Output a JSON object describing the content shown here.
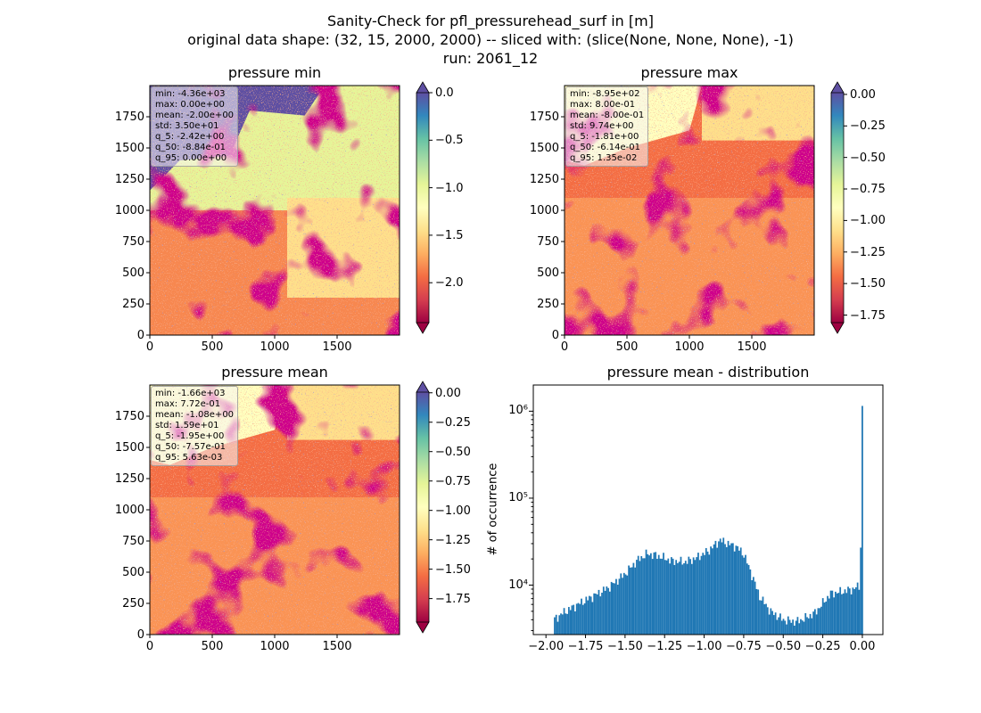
{
  "figure": {
    "title_lines": [
      "Sanity-Check for pfl_pressurehead_surf in [m]",
      "original data shape: (32, 15, 2000, 2000) -- sliced with: (slice(None, None, None), -1)",
      "run: 2061_12"
    ]
  },
  "chart_data": [
    {
      "type": "heatmap",
      "title": "pressure min",
      "xticks": [
        "0",
        "500",
        "1000",
        "1500"
      ],
      "yticks": [
        "0",
        "250",
        "500",
        "750",
        "1000",
        "1250",
        "1500",
        "1750"
      ],
      "xlim": [
        0,
        2000
      ],
      "ylim": [
        0,
        2000
      ],
      "colorbar": {
        "cmap": "Spectral",
        "ticks": [
          "0.0",
          "−0.5",
          "−1.0",
          "−1.5",
          "−2.0"
        ],
        "tick_values": [
          0.0,
          -0.5,
          -1.0,
          -1.5,
          -2.0
        ],
        "range": [
          -2.42,
          0.0
        ],
        "extend": "both"
      },
      "stats": [
        "min: -4.36e+03",
        "max: 0.00e+00",
        "mean: -2.00e+00",
        "std: 3.50e+01",
        "q_5: -2.42e+00",
        "q_50: -8.84e-01",
        "q_95: 0.00e+00"
      ]
    },
    {
      "type": "heatmap",
      "title": "pressure max",
      "xticks": [
        "0",
        "500",
        "1000",
        "1500"
      ],
      "yticks": [
        "0",
        "250",
        "500",
        "750",
        "1000",
        "1250",
        "1500",
        "1750"
      ],
      "xlim": [
        0,
        2000
      ],
      "ylim": [
        0,
        2000
      ],
      "colorbar": {
        "cmap": "Spectral",
        "ticks": [
          "0.00",
          "−0.25",
          "−0.50",
          "−0.75",
          "−1.00",
          "−1.25",
          "−1.50",
          "−1.75"
        ],
        "tick_values": [
          0,
          -0.25,
          -0.5,
          -0.75,
          -1.0,
          -1.25,
          -1.5,
          -1.75
        ],
        "range": [
          -1.81,
          0.0135
        ],
        "extend": "both"
      },
      "stats": [
        "min: -8.95e+02",
        "max: 8.00e-01",
        "mean: -8.00e-01",
        "std: 9.74e+00",
        "q_5: -1.81e+00",
        "q_50: -6.14e-01",
        "q_95: 1.35e-02"
      ]
    },
    {
      "type": "heatmap",
      "title": "pressure mean",
      "xticks": [
        "0",
        "500",
        "1000",
        "1500"
      ],
      "yticks": [
        "0",
        "250",
        "500",
        "750",
        "1000",
        "1250",
        "1500",
        "1750"
      ],
      "xlim": [
        0,
        2000
      ],
      "ylim": [
        0,
        2000
      ],
      "colorbar": {
        "cmap": "Spectral",
        "ticks": [
          "0.00",
          "−0.25",
          "−0.50",
          "−0.75",
          "−1.00",
          "−1.25",
          "−1.50",
          "−1.75"
        ],
        "tick_values": [
          0,
          -0.25,
          -0.5,
          -0.75,
          -1.0,
          -1.25,
          -1.5,
          -1.75
        ],
        "range": [
          -1.95,
          0.0056
        ],
        "extend": "both"
      },
      "stats": [
        "min: -1.66e+03",
        "max: 7.72e-01",
        "mean: -1.08e+00",
        "std: 1.59e+01",
        "q_5: -1.95e+00",
        "q_50: -7.57e-01",
        "q_95: 5.63e-03"
      ]
    },
    {
      "type": "bar",
      "title": "pressure mean - distribution",
      "ylabel": "# of occurrence",
      "yscale": "log",
      "xlim": [
        -2.08,
        0.13
      ],
      "ylim": [
        2700,
        2000000
      ],
      "xticks": [
        -2.0,
        -1.75,
        -1.5,
        -1.25,
        -1.0,
        -0.75,
        -0.5,
        -0.25,
        0.0
      ],
      "xtick_labels": [
        "−2.00",
        "−1.75",
        "−1.50",
        "−1.25",
        "−1.00",
        "−0.75",
        "−0.50",
        "−0.25",
        "0.00"
      ],
      "yticks": [
        10000,
        100000,
        1000000
      ],
      "ytick_labels": [
        "10⁴",
        "10⁵",
        "10⁶"
      ],
      "bins": {
        "start": -1.95,
        "end": 0.005,
        "count": 196
      },
      "profile": [
        [
          -1.95,
          4000
        ],
        [
          -1.9,
          4700
        ],
        [
          -1.8,
          6000
        ],
        [
          -1.7,
          7500
        ],
        [
          -1.6,
          9500
        ],
        [
          -1.5,
          13500
        ],
        [
          -1.42,
          19500
        ],
        [
          -1.36,
          23000
        ],
        [
          -1.3,
          22000
        ],
        [
          -1.2,
          19000
        ],
        [
          -1.12,
          18500
        ],
        [
          -1.05,
          20500
        ],
        [
          -0.97,
          25000
        ],
        [
          -0.9,
          33000
        ],
        [
          -0.85,
          30000
        ],
        [
          -0.8,
          28000
        ],
        [
          -0.75,
          23000
        ],
        [
          -0.7,
          13500
        ],
        [
          -0.65,
          7500
        ],
        [
          -0.58,
          5000
        ],
        [
          -0.5,
          4000
        ],
        [
          -0.42,
          3800
        ],
        [
          -0.37,
          4100
        ],
        [
          -0.3,
          4800
        ],
        [
          -0.25,
          6200
        ],
        [
          -0.2,
          8000
        ],
        [
          -0.12,
          8500
        ],
        [
          -0.06,
          9000
        ],
        [
          -0.02,
          9800
        ],
        [
          -0.01,
          14000
        ],
        [
          -0.005,
          27000
        ],
        [
          0.0,
          1150000
        ]
      ]
    }
  ]
}
